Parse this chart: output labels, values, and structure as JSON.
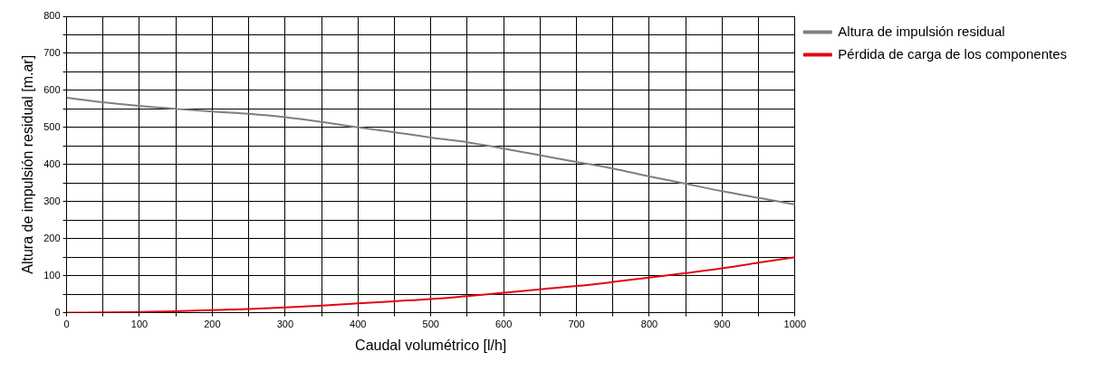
{
  "chart_data": {
    "type": "line",
    "xlabel": "Caudal volumétrico [l/h]",
    "ylabel": "Altura de impulsión residual [m.ar]",
    "xlim": [
      0,
      1000
    ],
    "xticks": [
      0,
      {
        "value": 50,
        "label": null
      },
      100,
      {
        "value": 150,
        "label": null
      },
      200,
      {
        "value": 250,
        "label": null
      },
      300,
      {
        "value": 350,
        "label": null
      },
      400,
      {
        "value": 450,
        "label": null
      },
      500,
      {
        "value": 550,
        "label": null
      },
      600,
      {
        "value": 650,
        "label": null
      },
      700,
      {
        "value": 750,
        "label": null
      },
      800,
      {
        "value": 850,
        "label": null
      },
      900,
      {
        "value": 950,
        "label": null
      },
      1000
    ],
    "ylim": [
      0,
      800
    ],
    "yticks": [
      0,
      {
        "value": 50,
        "label": null
      },
      100,
      {
        "value": 150,
        "label": null
      },
      200,
      {
        "value": 250,
        "label": null
      },
      300,
      {
        "value": 350,
        "label": null
      },
      400,
      {
        "value": 450,
        "label": null
      },
      500,
      {
        "value": 550,
        "label": null
      },
      600,
      {
        "value": 650,
        "label": null
      },
      700,
      {
        "value": 750,
        "label": null
      },
      800
    ],
    "x": [
      0,
      50,
      100,
      150,
      200,
      250,
      300,
      350,
      400,
      450,
      500,
      550,
      600,
      650,
      700,
      750,
      800,
      850,
      900,
      950,
      1000
    ],
    "series": [
      {
        "name": "Altura de impulsión residual",
        "color": "#7f7f7f",
        "values": [
          580,
          568,
          558,
          550,
          543,
          537,
          528,
          515,
          500,
          487,
          473,
          460,
          443,
          425,
          407,
          389,
          368,
          348,
          328,
          310,
          292
        ]
      },
      {
        "name": "Pérdida de carga de los componentes",
        "color": "#e30613",
        "values": [
          0,
          1,
          2,
          4,
          7,
          10,
          14,
          19,
          25,
          31,
          37,
          45,
          54,
          63,
          72,
          83,
          95,
          107,
          120,
          135,
          150
        ]
      }
    ],
    "grid": true,
    "legend": "top right",
    "marker": "none",
    "line_style": "solid"
  }
}
